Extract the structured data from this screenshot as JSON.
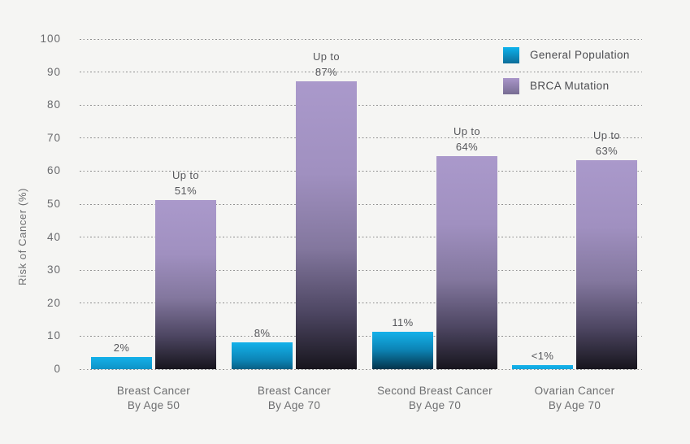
{
  "colors": {
    "background": "#f5f5f3",
    "general_population": "#14b1ea",
    "brca_mutation": "#aa99cb",
    "gradient_dark_end": "#17151d",
    "gridline": "#8f8f8f",
    "axis_text": "#6a6b6e",
    "value_text": "#56575b",
    "legend_text": "#4c4d51"
  },
  "legend": {
    "items": [
      {
        "label": "General Population",
        "swatch": "general"
      },
      {
        "label": "BRCA Mutation",
        "swatch": "brca"
      }
    ]
  },
  "chart_data": {
    "type": "bar",
    "title": "",
    "xlabel": "",
    "ylabel": "Risk of Cancer (%)",
    "ylim": [
      0,
      100
    ],
    "yticks": [
      0,
      10,
      20,
      30,
      40,
      50,
      60,
      70,
      80,
      90,
      100
    ],
    "grid": "horizontal dotted",
    "legend_position": "top-right",
    "categories": [
      {
        "line1": "Breast Cancer",
        "line2": "By Age 50"
      },
      {
        "line1": "Breast Cancer",
        "line2": "By Age 70"
      },
      {
        "line1": "Second Breast Cancer",
        "line2": "By Age 70"
      },
      {
        "line1": "Ovarian Cancer",
        "line2": "By Age 70"
      }
    ],
    "series": [
      {
        "name": "General Population",
        "swatch": "general",
        "values": [
          2,
          8,
          11,
          0.9
        ],
        "value_labels": [
          [
            "2%"
          ],
          [
            "8%"
          ],
          [
            "11%"
          ],
          [
            "<1%"
          ]
        ],
        "display_values": [
          3.6,
          8.2,
          11.3,
          1.2
        ]
      },
      {
        "name": "BRCA Mutation",
        "swatch": "brca",
        "values": [
          51,
          87,
          64,
          63
        ],
        "value_labels": [
          [
            "Up to",
            "51%"
          ],
          [
            "Up to",
            "87%"
          ],
          [
            "Up to",
            "64%"
          ],
          [
            "Up to",
            "63%"
          ]
        ],
        "display_values": [
          51.2,
          87.3,
          64.5,
          63.2
        ]
      }
    ]
  }
}
